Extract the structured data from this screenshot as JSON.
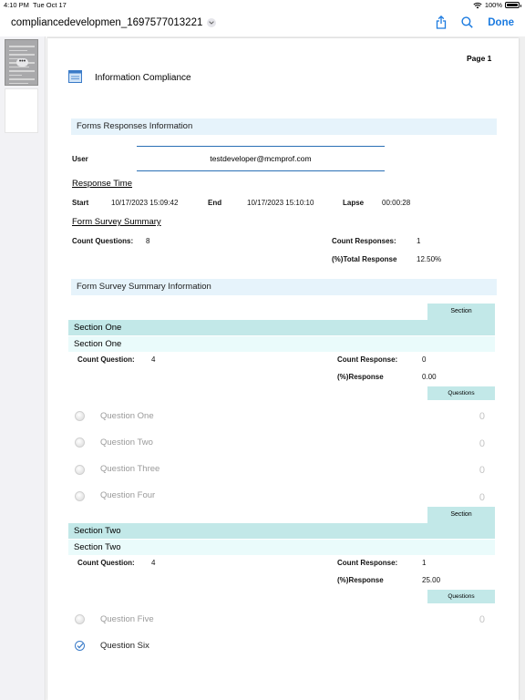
{
  "status_bar": {
    "time": "4:10 PM",
    "date": "Tue Oct 17",
    "battery": "100%"
  },
  "nav": {
    "filename": "compliancedevelopmen_1697577013221",
    "done_label": "Done"
  },
  "page": {
    "page_label": "Page 1",
    "title": "Information Compliance",
    "forms_header": "Forms Responses Information",
    "user_label": "User",
    "user_value": "testdeveloper@mcmprof.com",
    "response_time_heading": "Response Time",
    "start_label": "Start",
    "start_value": "10/17/2023 15:09:42",
    "end_label": "End",
    "end_value": "10/17/2023 15:10:10",
    "lapse_label": "Lapse",
    "lapse_value": "00:00:28",
    "summary_heading": "Form Survey Summary",
    "count_questions_label": "Count Questions:",
    "count_questions_value": "8",
    "count_responses_label": "Count Responses:",
    "count_responses_value": "1",
    "total_response_label": "(%)Total Response",
    "total_response_value": "12.50%",
    "summary_info_header": "Form Survey Summary Information"
  },
  "sections": [
    {
      "tag": "Section",
      "name": "Section One",
      "subname": "Section One",
      "count_question_label": "Count Question:",
      "count_question_value": "4",
      "count_response_label": "Count Response:",
      "count_response_value": "0",
      "pct_response_label": "(%)Response",
      "pct_response_value": "0.00",
      "questions_tag": "Questions",
      "questions": [
        {
          "label": "Question One",
          "count": "0",
          "checked": false
        },
        {
          "label": "Question Two",
          "count": "0",
          "checked": false
        },
        {
          "label": "Question Three",
          "count": "0",
          "checked": false
        },
        {
          "label": "Question Four",
          "count": "0",
          "checked": false
        }
      ]
    },
    {
      "tag": "Section",
      "name": "Section Two",
      "subname": "Section Two",
      "count_question_label": "Count Question:",
      "count_question_value": "4",
      "count_response_label": "Count Response:",
      "count_response_value": "1",
      "pct_response_label": "(%)Response",
      "pct_response_value": "25.00",
      "questions_tag": "Questions",
      "questions": [
        {
          "label": "Question Five",
          "count": "0",
          "checked": false
        },
        {
          "label": "Question Six",
          "count": "",
          "checked": true
        }
      ]
    }
  ],
  "colors": {
    "accent": "#1a7ae0",
    "band": "#e6f3fb",
    "section_band": "#c2e8e8",
    "section_sub": "#eafbfb",
    "field_line": "#2a6fb5"
  },
  "icons": [
    "wifi-icon",
    "battery-icon",
    "chevron-down-icon",
    "share-icon",
    "search-icon",
    "document-icon",
    "radio-icon",
    "checkmark-icon"
  ]
}
